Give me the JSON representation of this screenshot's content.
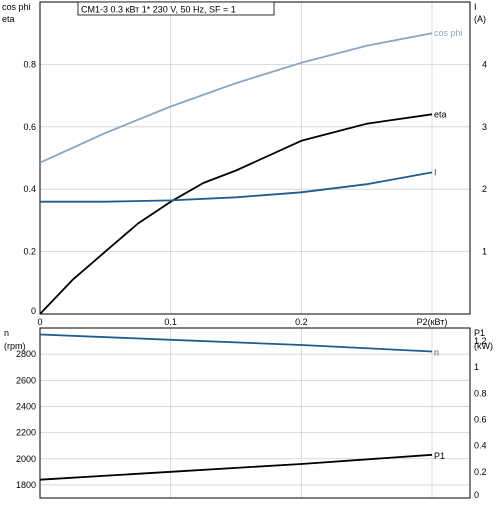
{
  "title_box": "CM1-3    0.3 кВт   1* 230 V, 50 Hz, SF = 1",
  "chart_data": [
    {
      "type": "line",
      "title": "CM1-3    0.3 кВт   1* 230 V, 50 Hz, SF = 1",
      "xlabel": "P2(кВт)",
      "xlim": [
        0,
        0.3
      ],
      "x_ticks": [
        "0",
        "0.1",
        "0.2"
      ],
      "y_left": {
        "labels": [
          "cos phi",
          "eta"
        ],
        "lim": [
          0,
          1.0
        ],
        "ticks": [
          "0",
          "0.2",
          "0.4",
          "0.6",
          "0.8"
        ]
      },
      "y_right": {
        "labels": [
          "I",
          "(A)"
        ],
        "lim": [
          0,
          5
        ],
        "ticks": [
          "1",
          "2",
          "3",
          "4"
        ]
      },
      "grid": true,
      "series": [
        {
          "name": "cos phi",
          "axis": "left",
          "color": "#8aa6c1",
          "x": [
            0,
            0.05,
            0.1,
            0.15,
            0.2,
            0.25,
            0.3
          ],
          "y": [
            0.485,
            0.58,
            0.665,
            0.74,
            0.805,
            0.86,
            0.9
          ]
        },
        {
          "name": "eta",
          "axis": "left",
          "color": "#000000",
          "x": [
            0,
            0.025,
            0.05,
            0.075,
            0.1,
            0.125,
            0.15,
            0.2,
            0.25,
            0.3
          ],
          "y": [
            0.0,
            0.11,
            0.2,
            0.29,
            0.36,
            0.42,
            0.46,
            0.555,
            0.61,
            0.64
          ]
        },
        {
          "name": "I",
          "axis": "right",
          "color": "#1f5b8c",
          "x": [
            0,
            0.05,
            0.1,
            0.15,
            0.2,
            0.25,
            0.3
          ],
          "y": [
            1.8,
            1.8,
            1.82,
            1.87,
            1.95,
            2.08,
            2.27
          ]
        }
      ]
    },
    {
      "type": "line",
      "xlim": [
        0,
        0.3
      ],
      "y_left": {
        "labels": [
          "n",
          "(rpm)"
        ],
        "lim": [
          1700,
          3000
        ],
        "ticks": [
          "1800",
          "2000",
          "2200",
          "2400",
          "2600",
          "2800"
        ]
      },
      "y_right": {
        "labels": [
          "P1",
          "(kW)"
        ],
        "lim": [
          0,
          1.3
        ],
        "ticks": [
          "0",
          "0.2",
          "0.4",
          "0.6",
          "0.8",
          "1",
          "1.2"
        ]
      },
      "grid": true,
      "series": [
        {
          "name": "n",
          "axis": "left",
          "color": "#1f5b8c",
          "x": [
            0,
            0.1,
            0.2,
            0.3
          ],
          "y": [
            2950,
            2910,
            2870,
            2820
          ]
        },
        {
          "name": "P1",
          "axis": "right",
          "color": "#000000",
          "x": [
            0,
            0.1,
            0.2,
            0.3
          ],
          "y": [
            0.14,
            0.2,
            0.26,
            0.33
          ]
        }
      ]
    }
  ]
}
